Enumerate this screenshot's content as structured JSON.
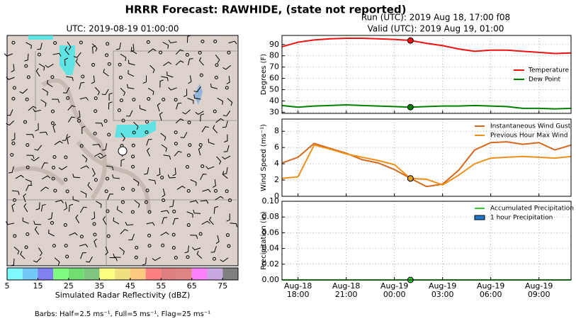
{
  "title": "HRRR Forecast: RAWHIDE, (state not reported)",
  "header": {
    "run": "Run (UTC): 2019 Aug 18, 17:00 f08",
    "valid": "Valid (UTC): 2019 Aug 19, 01:00"
  },
  "time_axis": {
    "x": [
      "Aug-18 17:00",
      "Aug-18 18:00",
      "Aug-18 19:00",
      "Aug-18 20:00",
      "Aug-18 21:00",
      "Aug-18 22:00",
      "Aug-18 23:00",
      "Aug-19 00:00",
      "Aug-19 01:00",
      "Aug-19 02:00",
      "Aug-19 03:00",
      "Aug-19 04:00",
      "Aug-19 05:00",
      "Aug-19 06:00",
      "Aug-19 07:00",
      "Aug-19 08:00",
      "Aug-19 09:00",
      "Aug-19 10:00",
      "Aug-19 11:00"
    ],
    "xlim": [
      "Aug-18 17:00",
      "Aug-19 11:00"
    ],
    "xticks": [
      {
        "value": "Aug-18 18:00",
        "label": [
          "Aug-18",
          "18:00"
        ]
      },
      {
        "value": "Aug-18 21:00",
        "label": [
          "Aug-18",
          "21:00"
        ]
      },
      {
        "value": "Aug-19 00:00",
        "label": [
          "Aug-19",
          "00:00"
        ]
      },
      {
        "value": "Aug-19 03:00",
        "label": [
          "Aug-19",
          "03:00"
        ]
      },
      {
        "value": "Aug-19 06:00",
        "label": [
          "Aug-19",
          "06:00"
        ]
      },
      {
        "value": "Aug-19 09:00",
        "label": [
          "Aug-19",
          "09:00"
        ]
      }
    ],
    "marker_x": "Aug-19 01:00"
  },
  "chart_data": [
    {
      "type": "map",
      "title": "UTC: 2019-08-19 01:00:00",
      "colorbar": {
        "label": "Simulated Radar Reflectivity (dBZ)",
        "bounds": [
          5,
          10,
          15,
          20,
          25,
          30,
          35,
          40,
          45,
          50,
          55,
          60,
          65,
          70,
          75,
          80
        ],
        "colors": [
          "#7ff9fb",
          "#72c8f7",
          "#7f7ff2",
          "#7ffb7f",
          "#72de72",
          "#7fc47f",
          "#fdfd80",
          "#f1e07f",
          "#fdc87f",
          "#fd7f7f",
          "#e07f7f",
          "#df8484",
          "#fd80fd",
          "#c8a8e0",
          "#7f7f7f"
        ],
        "ticks": [
          5,
          15,
          25,
          35,
          45,
          55,
          65,
          75
        ]
      },
      "note": "Barbs: Half=2.5 ms⁻¹, Full=5 ms⁻¹, Flag=25 ms⁻¹"
    },
    {
      "type": "line",
      "ylabel": "Degrees (F)",
      "ylim": [
        29,
        98
      ],
      "yticks": [
        30,
        40,
        50,
        60,
        70,
        80,
        90
      ],
      "grid": true,
      "legend": "right",
      "series": [
        {
          "name": "Temperature",
          "color": "#ee1111",
          "values": [
            88,
            92,
            94,
            95,
            95.5,
            95.5,
            95,
            94.5,
            93.5,
            91,
            89,
            86,
            84,
            85,
            85,
            84,
            83,
            82,
            82.5
          ]
        },
        {
          "name": "Dew Point",
          "color": "#008000",
          "values": [
            36,
            34.5,
            35.5,
            36,
            36.5,
            36,
            35.5,
            35,
            34.5,
            35,
            35.5,
            35.5,
            36,
            35.5,
            35,
            33.5,
            33.5,
            33,
            33.5
          ]
        }
      ]
    },
    {
      "type": "line",
      "ylabel": "Wind Speed (ms⁻¹)",
      "ylim": [
        0,
        9.5
      ],
      "yticks": [
        0,
        2,
        4,
        6,
        8
      ],
      "grid": true,
      "legend": "upper right",
      "series": [
        {
          "name": "Instantaneous Wind Gust",
          "color": "#d2691e",
          "values": [
            4.1,
            4.8,
            6.5,
            5.9,
            5.3,
            4.5,
            4.1,
            3.3,
            2.2,
            1.2,
            1.5,
            3.2,
            5.7,
            6.6,
            6.7,
            6.4,
            6.6,
            5.7,
            6.3
          ]
        },
        {
          "name": "Previous Hour Max Wind",
          "color": "#f0901a",
          "values": [
            2.2,
            2.4,
            6.3,
            5.8,
            5.2,
            4.8,
            4.4,
            3.9,
            2.2,
            2.1,
            1.4,
            2.6,
            4.0,
            4.7,
            4.8,
            4.9,
            4.8,
            4.7,
            4.9
          ]
        }
      ]
    },
    {
      "type": "line",
      "ylabel": "Precipitation (in)",
      "ylim": [
        0,
        0.1
      ],
      "grid": true,
      "legend": "upper right",
      "yticks": [
        {
          "value": 0,
          "label": "0.00"
        },
        {
          "value": 0.02,
          "label": "0.02"
        },
        {
          "value": 0.04,
          "label": "0.04"
        },
        {
          "value": 0.06,
          "label": "0.06"
        },
        {
          "value": 0.08,
          "label": "0.08"
        },
        {
          "value": 0.1,
          "label": "0.10"
        }
      ],
      "series": [
        {
          "name": "Accumulated Precipitation",
          "color": "#33cc33",
          "values": [
            0,
            0,
            0,
            0,
            0,
            0,
            0,
            0,
            0,
            0,
            0,
            0,
            0,
            0,
            0,
            0,
            0,
            0,
            0
          ]
        },
        {
          "name": "1 hour Precipitation",
          "kind": "bar",
          "color": "#1f78d0",
          "values": [
            0,
            0,
            0,
            0,
            0,
            0,
            0,
            0,
            0,
            0,
            0,
            0,
            0,
            0,
            0,
            0,
            0,
            0,
            0
          ]
        }
      ]
    }
  ]
}
